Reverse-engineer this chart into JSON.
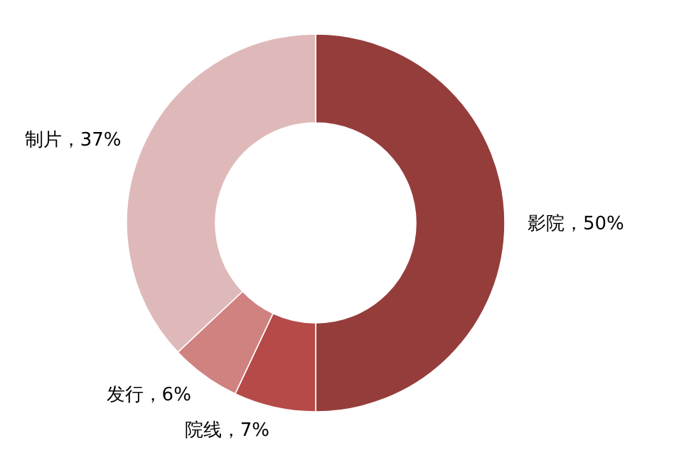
{
  "chart_data": {
    "type": "donut",
    "categories": [
      "影院",
      "院线",
      "发行",
      "制片"
    ],
    "values": [
      50,
      7,
      6,
      37
    ],
    "value_labels": [
      "50%",
      "7%",
      "6%",
      "37%"
    ],
    "colors": [
      "#953d3b",
      "#b54a48",
      "#d08281",
      "#dfb9b9"
    ]
  }
}
